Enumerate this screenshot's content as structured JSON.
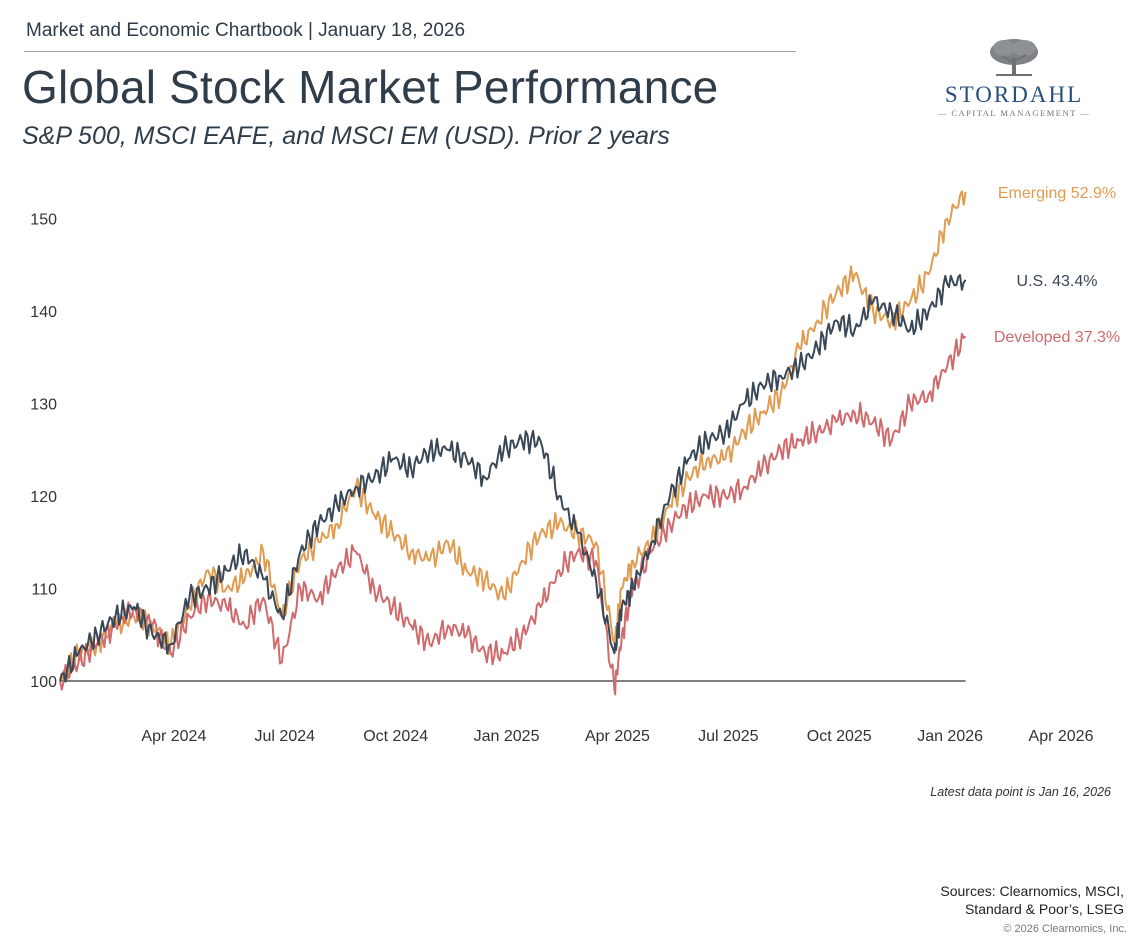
{
  "header": {
    "chartbook": "Market and Economic Chartbook | January 18, 2026",
    "title": "Global Stock Market Performance",
    "subtitle": "S&P 500, MSCI EAFE, and MSCI EM (USD). Prior 2 years"
  },
  "logo": {
    "name": "STORDAHL",
    "sub": "— CAPITAL MANAGEMENT —"
  },
  "footer": {
    "latest_note": "Latest data point is Jan 16, 2026",
    "sources_line1": "Sources: Clearnomics, MSCI,",
    "sources_line2": "Standard & Poor’s, LSEG",
    "copyright": "© 2026 Clearnomics, Inc."
  },
  "colors": {
    "us": "#3a4756",
    "developed": "#d06a6c",
    "emerging": "#df9c52",
    "baseline": "#333333"
  },
  "chart_data": {
    "type": "line",
    "title": "Global Stock Market Performance",
    "xlabel": "",
    "ylabel": "",
    "ylim": [
      100,
      153
    ],
    "yticks": [
      100,
      110,
      120,
      130,
      140,
      150
    ],
    "baseline": 100,
    "x_range_months": [
      0,
      27
    ],
    "x_tick_labels": [
      "Apr 2024",
      "Jul 2024",
      "Oct 2024",
      "Jan 2025",
      "Apr 2025",
      "Jul 2025",
      "Oct 2025",
      "Jan 2026",
      "Apr 2026"
    ],
    "x_tick_positions_months": [
      3,
      6,
      9,
      12,
      15,
      18,
      21,
      24,
      27
    ],
    "x": [
      0,
      0.5,
      1,
      1.5,
      2,
      2.5,
      3,
      3.5,
      4,
      4.5,
      5,
      5.5,
      6,
      6.5,
      7,
      7.5,
      8,
      8.5,
      9,
      9.5,
      10,
      10.5,
      11,
      11.5,
      12,
      12.5,
      13,
      13.5,
      14,
      14.5,
      15,
      15.2,
      15.5,
      16,
      16.5,
      17,
      17.5,
      18,
      18.5,
      19,
      19.5,
      20,
      20.5,
      21,
      21.5,
      22,
      22.5,
      23,
      23.5,
      24,
      24.5
    ],
    "series": [
      {
        "name": "U.S.",
        "label": "U.S. 43.4%",
        "color_key": "us",
        "values": [
          100,
          103,
          105,
          107,
          108,
          105,
          104,
          109,
          110,
          112,
          114,
          111,
          107,
          114,
          117,
          119,
          121,
          122,
          124,
          123,
          125,
          125,
          124,
          122,
          125,
          126,
          126,
          120,
          116,
          111,
          103,
          108,
          110,
          115,
          120,
          124,
          126,
          127,
          130,
          132,
          133,
          134,
          136,
          139,
          138,
          141,
          140,
          138,
          140,
          143,
          143.4
        ]
      },
      {
        "name": "Developed",
        "label": "Developed 37.3%",
        "color_key": "developed",
        "values": [
          100,
          102,
          104,
          106,
          108,
          106,
          103,
          107,
          109,
          108,
          106,
          109,
          102,
          110,
          109,
          112,
          114,
          110,
          108,
          106,
          104,
          106,
          105,
          103,
          103,
          105,
          108,
          112,
          114,
          113,
          99,
          105,
          110,
          114,
          117,
          119,
          120,
          120,
          121,
          123,
          125,
          126,
          127,
          128,
          129,
          128,
          126,
          130,
          131,
          134,
          137.3
        ]
      },
      {
        "name": "Emerging",
        "label": "Emerging 52.9%",
        "color_key": "emerging",
        "values": [
          100,
          103,
          104,
          106,
          107,
          106,
          104,
          108,
          112,
          110,
          111,
          114,
          107,
          113,
          115,
          117,
          121,
          118,
          116,
          114,
          113,
          115,
          112,
          111,
          109,
          113,
          116,
          117,
          116,
          115,
          104,
          110,
          113,
          115,
          119,
          122,
          124,
          124,
          127,
          129,
          131,
          136,
          139,
          142,
          144,
          140,
          139,
          141,
          144,
          150,
          152.9
        ]
      }
    ]
  }
}
